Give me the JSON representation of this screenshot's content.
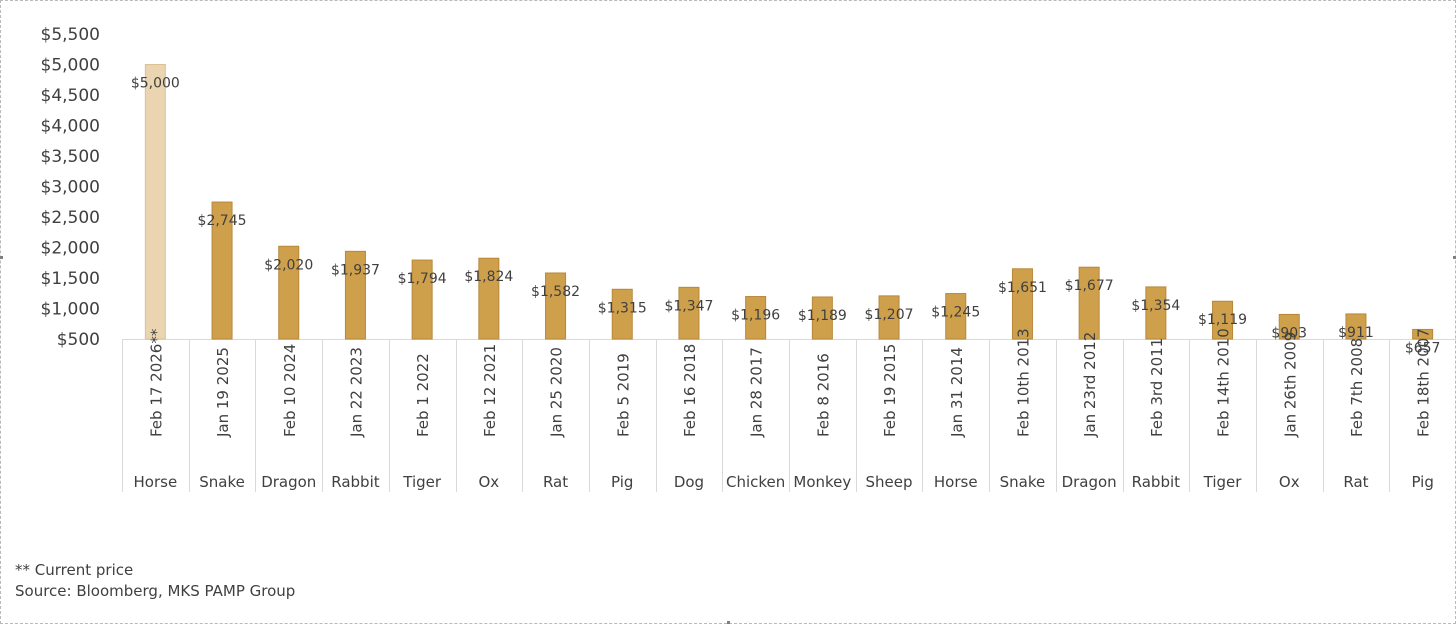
{
  "chart_data": {
    "type": "bar",
    "title": "",
    "xlabel": "",
    "ylabel": "",
    "ylim": [
      500,
      5500
    ],
    "yticks": [
      500,
      1000,
      1500,
      2000,
      2500,
      3000,
      3500,
      4000,
      4500,
      5000,
      5500
    ],
    "ytick_labels": [
      "$500",
      "$1,000",
      "$1,500",
      "$2,000",
      "$2,500",
      "$3,000",
      "$3,500",
      "$4,000",
      "$4,500",
      "$5,000",
      "$5,500"
    ],
    "categories": [
      "Feb 17 2026**",
      "Jan 19 2025",
      "Feb 10 2024",
      "Jan 22 2023",
      "Feb 1 2022",
      "Feb 12 2021",
      "Jan 25 2020",
      "Feb 5 2019",
      "Feb 16 2018",
      "Jan 28 2017",
      "Feb 8 2016",
      "Feb 19 2015",
      "Jan 31 2014",
      "Feb 10th 2013",
      "Jan 23rd 2012",
      "Feb 3rd 2011",
      "Feb 14th 2010",
      "Jan 26th 2009",
      "Feb 7th 2008",
      "Feb 18th 2007"
    ],
    "animals": [
      "Horse",
      "Snake",
      "Dragon",
      "Rabbit",
      "Tiger",
      "Ox",
      "Rat",
      "Pig",
      "Dog",
      "Chicken",
      "Monkey",
      "Sheep",
      "Horse",
      "Snake",
      "Dragon",
      "Rabbit",
      "Tiger",
      "Ox",
      "Rat",
      "Pig"
    ],
    "values": [
      5000,
      2745,
      2020,
      1937,
      1794,
      1824,
      1582,
      1315,
      1347,
      1196,
      1189,
      1207,
      1245,
      1651,
      1677,
      1354,
      1119,
      903,
      911,
      657
    ],
    "value_labels": [
      "$5,000",
      "$2,745",
      "$2,020",
      "$1,937",
      "$1,794",
      "$1,824",
      "$1,582",
      "$1,315",
      "$1,347",
      "$1,196",
      "$1,189",
      "$1,207",
      "$1,245",
      "$1,651",
      "$1,677",
      "$1,354",
      "$1,119",
      "$903",
      "$911",
      "$657"
    ],
    "highlight_index": 0,
    "colors": {
      "bar": "#cfa04c",
      "bar_stroke": "#b8873a",
      "highlight_bar": "#ead5b0",
      "highlight_stroke": "#dcc096",
      "axis": "#d9d9d9",
      "text": "#404040"
    },
    "grid": false,
    "legend": "none"
  },
  "footnotes": {
    "current_price": "** Current price",
    "source": "Source: Bloomberg, MKS PAMP Group"
  }
}
